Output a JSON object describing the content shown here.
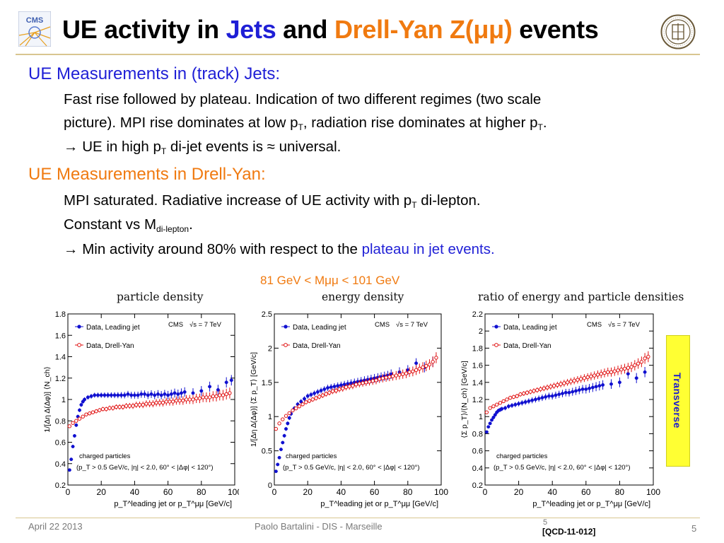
{
  "slide": {
    "title_parts": [
      "UE activity in ",
      "Jets",
      " and ",
      "Drell-Yan Z(μμ)",
      " events"
    ],
    "bullets": {
      "jets_heading": "UE Measurements in (track) Jets:",
      "jets_line1": "Fast rise followed by plateau. Indication of two different regimes (two scale",
      "jets_line2_a": "picture). MPI rise dominates at low p",
      "jets_line2_sub1": "T",
      "jets_line2_b": ", radiation rise dominates at higher p",
      "jets_line2_sub2": "T",
      "jets_line2_c": ".",
      "jets_arrow": "→",
      "jets_conclusion_a": " UE in high p",
      "jets_conclusion_sub": "T",
      "jets_conclusion_b": "  di-jet events is ≈ universal.",
      "dy_heading": "UE Measurements in Drell-Yan:",
      "dy_line1_a": "MPI saturated.  Radiative increase of UE activity with p",
      "dy_line1_sub": "T",
      "dy_line1_b": " di-lepton.",
      "dy_line2_a": "Constant vs M",
      "dy_line2_sub": "di-lepton",
      "dy_line2_b": ".",
      "dy_arrow": "→",
      "dy_conclusion_a": " Min activity around 80% with respect to the ",
      "dy_conclusion_b": "plateau in jet events."
    },
    "mass_window": "81 GeV < Mμμ < 101 GeV",
    "transverse_label": "Transverse",
    "footer": {
      "date": "April 22 2013",
      "author": "Paolo Bartalini - DIS - Marseille",
      "page_small": "5",
      "reference": "[QCD-11-012]",
      "page": "5"
    }
  },
  "colors": {
    "title_blue": "#1f1fd6",
    "title_orange": "#f07a10",
    "leading_jet": "#1010d0",
    "drell_yan": "#e01010",
    "transverse_box": "#ffff33",
    "rule": "#d8c690"
  },
  "chart_data": [
    {
      "type": "scatter",
      "title": "particle density",
      "xlabel": "p_T^leading jet or p_T^μμ [GeV/c]",
      "ylabel": "1/[Δη Δ(Δφ)] ⟨N_ch⟩",
      "xlim": [
        0,
        100
      ],
      "ylim": [
        0.2,
        1.8
      ],
      "x_ticks": [
        "0",
        "20",
        "40",
        "60",
        "80",
        "100"
      ],
      "y_ticks": [
        "0.2",
        "0.4",
        "0.6",
        "0.8",
        "1",
        "1.2",
        "1.4",
        "1.6",
        "1.8"
      ],
      "legend": [
        "Data, Leading jet",
        "Data, Drell-Yan"
      ],
      "legend_position": "top-left",
      "annotation_cms": "CMS",
      "annotation_energy": "√s = 7 TeV",
      "note_line1": "charged particles",
      "note_line2": "(p_T > 0.5 GeV/c, |η| < 2.0, 60° < |Δφ| < 120°)",
      "series": [
        {
          "name": "Data, Leading jet",
          "x": [
            1,
            2,
            3,
            4,
            5,
            6,
            7,
            8,
            9,
            10,
            12,
            14,
            16,
            18,
            20,
            22,
            24,
            26,
            28,
            30,
            32,
            34,
            36,
            38,
            40,
            42,
            44,
            46,
            48,
            50,
            52,
            54,
            56,
            58,
            60,
            62,
            64,
            66,
            68,
            70,
            75,
            80,
            85,
            90,
            95,
            98
          ],
          "y": [
            0.34,
            0.44,
            0.56,
            0.66,
            0.76,
            0.84,
            0.9,
            0.95,
            0.98,
            1.0,
            1.02,
            1.03,
            1.04,
            1.04,
            1.04,
            1.04,
            1.04,
            1.04,
            1.04,
            1.04,
            1.04,
            1.04,
            1.05,
            1.04,
            1.04,
            1.04,
            1.05,
            1.05,
            1.04,
            1.05,
            1.04,
            1.05,
            1.04,
            1.05,
            1.04,
            1.05,
            1.06,
            1.05,
            1.06,
            1.07,
            1.06,
            1.08,
            1.12,
            1.09,
            1.16,
            1.18
          ]
        },
        {
          "name": "Data, Drell-Yan",
          "x": [
            1,
            3,
            5,
            7,
            9,
            11,
            13,
            15,
            17,
            19,
            21,
            23,
            25,
            27,
            29,
            31,
            33,
            35,
            37,
            39,
            41,
            43,
            45,
            47,
            49,
            51,
            53,
            55,
            57,
            59,
            61,
            63,
            65,
            67,
            69,
            71,
            73,
            75,
            77,
            79,
            81,
            83,
            85,
            87,
            89,
            91,
            93,
            95,
            97
          ],
          "y": [
            0.75,
            0.78,
            0.8,
            0.82,
            0.84,
            0.86,
            0.87,
            0.88,
            0.89,
            0.9,
            0.91,
            0.91,
            0.92,
            0.92,
            0.93,
            0.93,
            0.93,
            0.94,
            0.94,
            0.94,
            0.95,
            0.95,
            0.95,
            0.96,
            0.96,
            0.96,
            0.97,
            0.97,
            0.97,
            0.98,
            0.98,
            0.98,
            0.99,
            0.99,
            0.99,
            1.0,
            1.0,
            1.0,
            1.01,
            1.01,
            1.02,
            1.02,
            1.02,
            1.03,
            1.03,
            1.04,
            1.04,
            1.05,
            1.06
          ]
        }
      ]
    },
    {
      "type": "scatter",
      "title": "energy density",
      "xlabel": "p_T^leading jet or p_T^μμ [GeV/c]",
      "ylabel": "1/[Δη Δ(Δφ)] ⟨Σ p_T⟩ [GeV/c]",
      "xlim": [
        0,
        100
      ],
      "ylim": [
        0,
        2.5
      ],
      "x_ticks": [
        "0",
        "20",
        "40",
        "60",
        "80",
        "100"
      ],
      "y_ticks": [
        "0",
        "0.5",
        "1",
        "1.5",
        "2",
        "2.5"
      ],
      "legend": [
        "Data, Leading jet",
        "Data, Drell-Yan"
      ],
      "legend_position": "top-left",
      "annotation_cms": "CMS",
      "annotation_energy": "√s = 7 TeV",
      "note_line1": "charged particles",
      "note_line2": "(p_T > 0.5 GeV/c, |η| < 2.0, 60° < |Δφ| < 120°)",
      "series": [
        {
          "name": "Data, Leading jet",
          "x": [
            1,
            2,
            3,
            4,
            5,
            6,
            7,
            8,
            9,
            10,
            12,
            14,
            16,
            18,
            20,
            22,
            24,
            26,
            28,
            30,
            32,
            34,
            36,
            38,
            40,
            42,
            44,
            46,
            48,
            50,
            52,
            54,
            56,
            58,
            60,
            62,
            64,
            66,
            68,
            70,
            75,
            80,
            85,
            90,
            95
          ],
          "y": [
            0.2,
            0.3,
            0.4,
            0.52,
            0.62,
            0.72,
            0.82,
            0.9,
            0.98,
            1.04,
            1.12,
            1.18,
            1.22,
            1.26,
            1.3,
            1.32,
            1.34,
            1.36,
            1.38,
            1.4,
            1.42,
            1.43,
            1.44,
            1.45,
            1.46,
            1.47,
            1.48,
            1.49,
            1.5,
            1.51,
            1.52,
            1.53,
            1.54,
            1.55,
            1.56,
            1.57,
            1.58,
            1.59,
            1.6,
            1.62,
            1.65,
            1.68,
            1.78,
            1.72,
            1.8
          ]
        },
        {
          "name": "Data, Drell-Yan",
          "x": [
            1,
            3,
            5,
            7,
            9,
            11,
            13,
            15,
            17,
            19,
            21,
            23,
            25,
            27,
            29,
            31,
            33,
            35,
            37,
            39,
            41,
            43,
            45,
            47,
            49,
            51,
            53,
            55,
            57,
            59,
            61,
            63,
            65,
            67,
            69,
            71,
            73,
            75,
            77,
            79,
            81,
            83,
            85,
            87,
            89,
            91,
            93,
            95,
            97
          ],
          "y": [
            0.82,
            0.9,
            0.96,
            1.01,
            1.05,
            1.09,
            1.12,
            1.15,
            1.18,
            1.21,
            1.23,
            1.25,
            1.27,
            1.29,
            1.31,
            1.33,
            1.35,
            1.37,
            1.38,
            1.4,
            1.41,
            1.43,
            1.44,
            1.45,
            1.47,
            1.48,
            1.49,
            1.5,
            1.51,
            1.52,
            1.53,
            1.55,
            1.56,
            1.57,
            1.58,
            1.59,
            1.6,
            1.61,
            1.62,
            1.63,
            1.65,
            1.66,
            1.68,
            1.7,
            1.72,
            1.74,
            1.76,
            1.8,
            1.86
          ]
        }
      ]
    },
    {
      "type": "scatter",
      "title": "ratio of energy and particle densities",
      "xlabel": "p_T^leading jet or p_T^μμ [GeV/c]",
      "ylabel": "⟨Σ p_T⟩/⟨N_ch⟩ [GeV/c]",
      "xlim": [
        0,
        100
      ],
      "ylim": [
        0.2,
        2.2
      ],
      "x_ticks": [
        "0",
        "20",
        "40",
        "60",
        "80",
        "100"
      ],
      "y_ticks": [
        "0.2",
        "0.4",
        "0.6",
        "0.8",
        "1",
        "1.2",
        "1.4",
        "1.6",
        "1.8",
        "2",
        "2.2"
      ],
      "legend": [
        "Data, Leading jet",
        "Data, Drell-Yan"
      ],
      "legend_position": "top-left",
      "annotation_cms": "CMS",
      "annotation_energy": "√s = 7 TeV",
      "note_line1": "charged particles",
      "note_line2": "(p_T > 0.5 GeV/c, |η| < 2.0, 60° < |Δφ| < 120°)",
      "series": [
        {
          "name": "Data, Leading jet",
          "x": [
            1,
            2,
            3,
            4,
            5,
            6,
            7,
            8,
            9,
            10,
            12,
            14,
            16,
            18,
            20,
            22,
            24,
            26,
            28,
            30,
            32,
            34,
            36,
            38,
            40,
            42,
            44,
            46,
            48,
            50,
            52,
            54,
            56,
            58,
            60,
            62,
            64,
            66,
            68,
            70,
            75,
            80,
            85,
            90,
            95
          ],
          "y": [
            0.82,
            0.88,
            0.92,
            0.96,
            0.99,
            1.02,
            1.05,
            1.07,
            1.08,
            1.09,
            1.1,
            1.12,
            1.13,
            1.14,
            1.15,
            1.16,
            1.17,
            1.18,
            1.19,
            1.2,
            1.21,
            1.22,
            1.23,
            1.24,
            1.24,
            1.25,
            1.26,
            1.27,
            1.28,
            1.28,
            1.29,
            1.3,
            1.31,
            1.32,
            1.32,
            1.33,
            1.34,
            1.35,
            1.36,
            1.37,
            1.38,
            1.4,
            1.5,
            1.45,
            1.52
          ]
        },
        {
          "name": "Data, Drell-Yan",
          "x": [
            1,
            3,
            5,
            7,
            9,
            11,
            13,
            15,
            17,
            19,
            21,
            23,
            25,
            27,
            29,
            31,
            33,
            35,
            37,
            39,
            41,
            43,
            45,
            47,
            49,
            51,
            53,
            55,
            57,
            59,
            61,
            63,
            65,
            67,
            69,
            71,
            73,
            75,
            77,
            79,
            81,
            83,
            85,
            87,
            89,
            91,
            93,
            95,
            97
          ],
          "y": [
            1.05,
            1.1,
            1.12,
            1.14,
            1.16,
            1.18,
            1.2,
            1.22,
            1.23,
            1.24,
            1.26,
            1.27,
            1.28,
            1.29,
            1.3,
            1.31,
            1.32,
            1.33,
            1.34,
            1.35,
            1.36,
            1.37,
            1.38,
            1.39,
            1.4,
            1.41,
            1.42,
            1.43,
            1.44,
            1.45,
            1.46,
            1.47,
            1.48,
            1.49,
            1.5,
            1.51,
            1.52,
            1.52,
            1.53,
            1.54,
            1.55,
            1.56,
            1.57,
            1.58,
            1.6,
            1.62,
            1.64,
            1.68,
            1.7
          ]
        }
      ]
    }
  ]
}
